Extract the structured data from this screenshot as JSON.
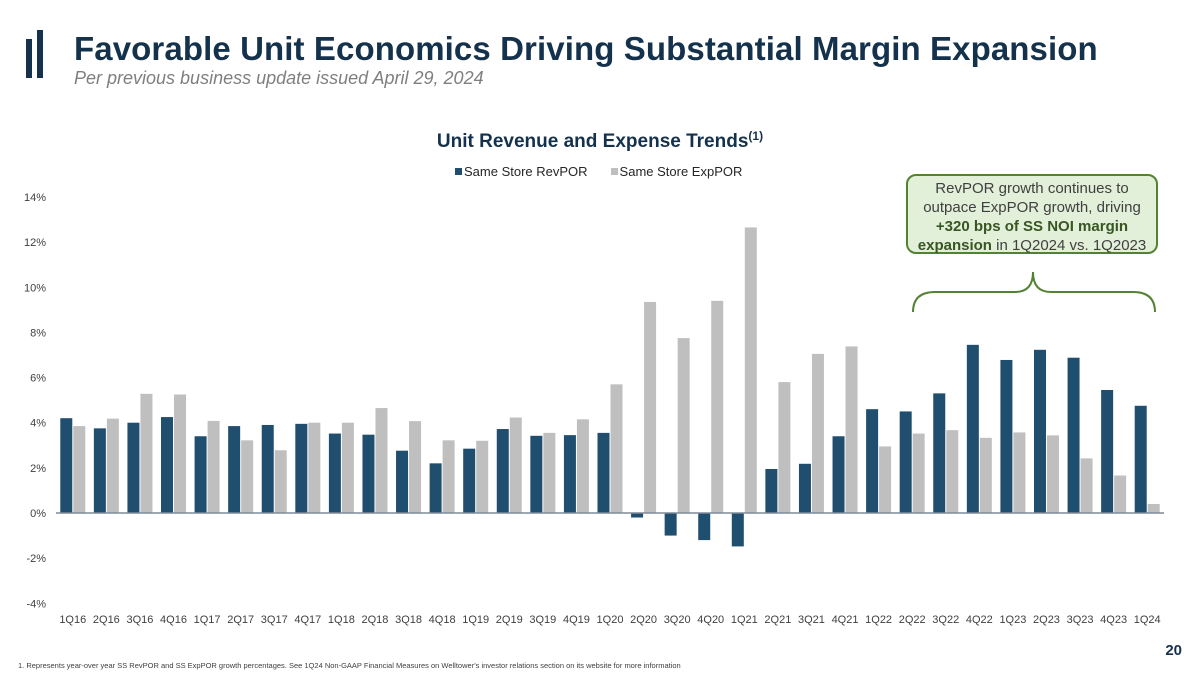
{
  "header": {
    "title": "Favorable Unit Economics Driving Substantial Margin Expansion",
    "subtitle": "Per previous business update issued April 29, 2024",
    "logo_icon": "two-bar-logo-icon"
  },
  "callout": {
    "line1": "RevPOR growth continues to",
    "line2": "outpace ExpPOR growth, driving",
    "bold1": "+320 bps of SS NOI margin",
    "bold2": "expansion",
    "tail2": " in 1Q2024 vs. 1Q2023"
  },
  "footer": {
    "footnote": "1. Represents year-over year SS RevPOR and SS ExpPOR growth percentages. See 1Q24 Non-GAAP Financial Measures on Welltower's investor relations section on its website for more information",
    "page_number": "20"
  },
  "colors": {
    "rev": "#1f4e6e",
    "exp": "#bfbfbf",
    "title": "#15324d",
    "callout_fill": "#e2efd9",
    "callout_border": "#548235"
  },
  "chart_data": {
    "type": "bar",
    "title": "Unit Revenue and Expense Trends",
    "title_superscript": "(1)",
    "xlabel": "",
    "ylabel": "",
    "ylim": [
      -4,
      14
    ],
    "yticks": [
      -4,
      -2,
      0,
      2,
      4,
      6,
      8,
      10,
      12,
      14
    ],
    "ytick_labels": [
      "-4%",
      "-2%",
      "0%",
      "2%",
      "4%",
      "6%",
      "8%",
      "10%",
      "12%",
      "14%"
    ],
    "grid": false,
    "legend_position": "top-center",
    "categories": [
      "1Q16",
      "2Q16",
      "3Q16",
      "4Q16",
      "1Q17",
      "2Q17",
      "3Q17",
      "4Q17",
      "1Q18",
      "2Q18",
      "3Q18",
      "4Q18",
      "1Q19",
      "2Q19",
      "3Q19",
      "4Q19",
      "1Q20",
      "2Q20",
      "3Q20",
      "4Q20",
      "1Q21",
      "2Q21",
      "3Q21",
      "4Q21",
      "1Q22",
      "2Q22",
      "3Q22",
      "4Q22",
      "1Q23",
      "2Q23",
      "3Q23",
      "4Q23",
      "1Q24"
    ],
    "series": [
      {
        "name": "Same Store RevPOR",
        "color": "#1f4e6e",
        "values": [
          4.2,
          3.75,
          4.0,
          4.25,
          3.4,
          3.85,
          3.9,
          3.95,
          3.52,
          3.47,
          2.76,
          2.2,
          2.85,
          3.72,
          3.42,
          3.45,
          3.55,
          -0.2,
          -1.0,
          -1.2,
          -1.48,
          1.95,
          2.18,
          3.4,
          4.6,
          4.5,
          5.3,
          7.45,
          6.78,
          7.23,
          6.88,
          5.45,
          4.75
        ]
      },
      {
        "name": "Same Store ExpPOR",
        "color": "#bfbfbf",
        "values": [
          3.85,
          4.18,
          5.28,
          5.25,
          4.08,
          3.22,
          2.78,
          4.0,
          4.0,
          4.65,
          4.07,
          3.22,
          3.2,
          4.23,
          3.55,
          4.15,
          5.7,
          9.35,
          7.75,
          9.4,
          12.65,
          5.8,
          7.05,
          7.38,
          2.95,
          3.52,
          3.67,
          3.33,
          3.57,
          3.44,
          2.42,
          1.66,
          0.4
        ]
      }
    ]
  }
}
